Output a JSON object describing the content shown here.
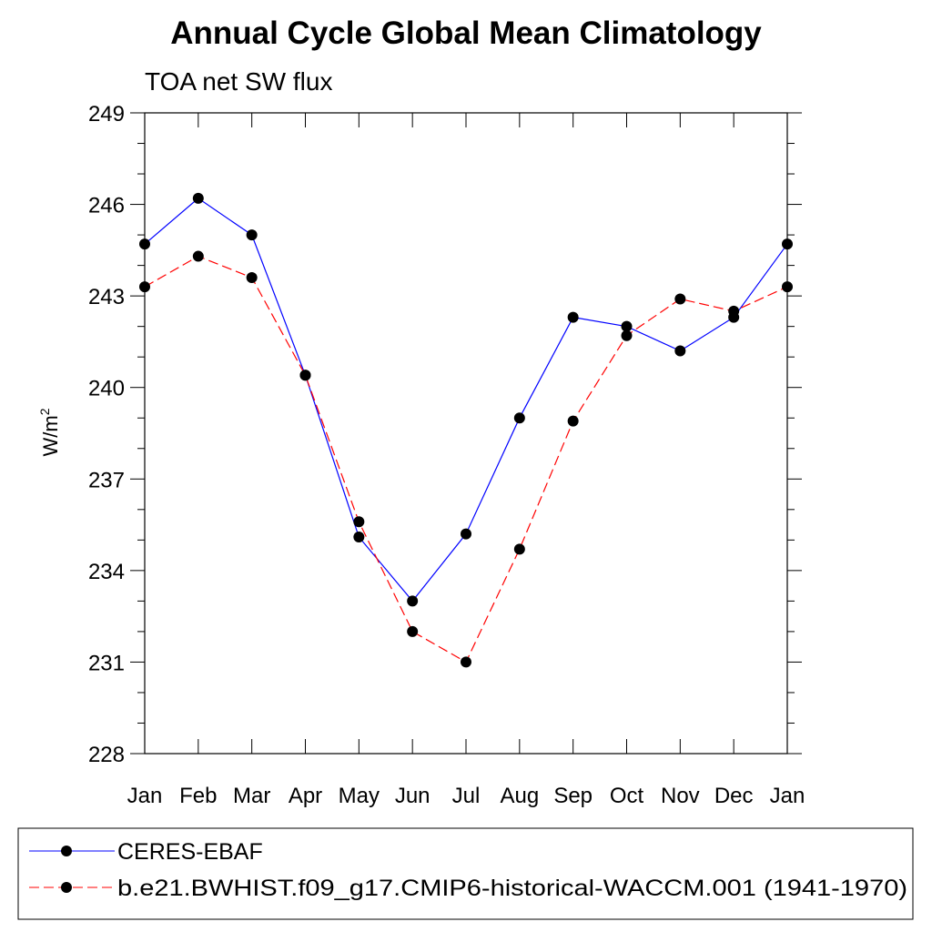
{
  "chart_data": {
    "type": "line",
    "title": "Annual Cycle Global Mean Climatology",
    "subtitle": "TOA net SW flux",
    "xlabel": "",
    "ylabel": "W/m",
    "ylabel_superscript": "2",
    "categories": [
      "Jan",
      "Feb",
      "Mar",
      "Apr",
      "May",
      "Jun",
      "Jul",
      "Aug",
      "Sep",
      "Oct",
      "Nov",
      "Dec",
      "Jan"
    ],
    "ylim": [
      228,
      249
    ],
    "yticks": [
      "249",
      "246",
      "243",
      "240",
      "237",
      "234",
      "231",
      "228"
    ],
    "series": [
      {
        "name": "CERES-EBAF",
        "color": "#0000ff",
        "dash": "solid",
        "values": [
          244.7,
          246.2,
          245.0,
          240.4,
          235.1,
          233.0,
          235.2,
          239.0,
          242.3,
          242.0,
          241.2,
          242.3,
          244.7
        ]
      },
      {
        "name": "b.e21.BWHIST.f09_g17.CMIP6-historical-WACCM.001 (1941-1970)",
        "color": "#ff0000",
        "dash": "dashed",
        "values": [
          243.3,
          244.3,
          243.6,
          240.4,
          235.6,
          232.0,
          231.0,
          234.7,
          238.9,
          241.7,
          242.9,
          242.5,
          243.3
        ]
      }
    ],
    "legend_position": "bottom"
  }
}
